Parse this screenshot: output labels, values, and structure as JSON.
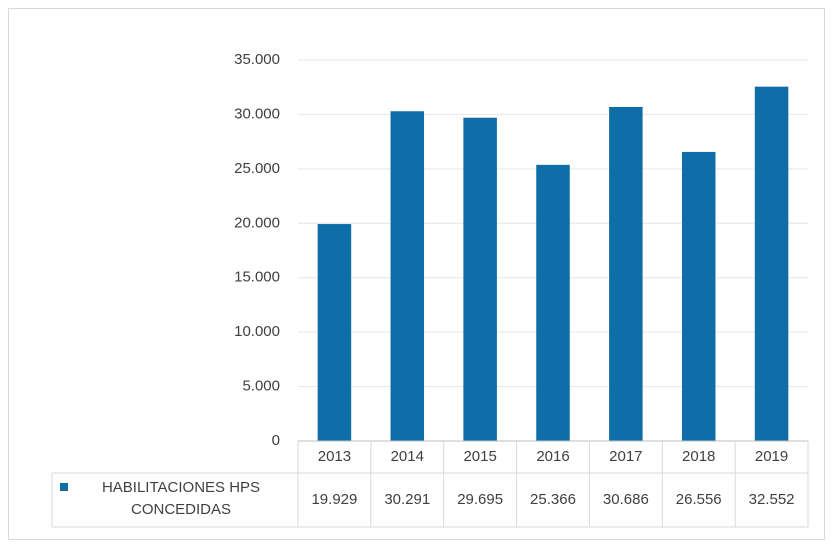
{
  "chart_data": {
    "type": "bar",
    "categories": [
      "2013",
      "2014",
      "2015",
      "2016",
      "2017",
      "2018",
      "2019"
    ],
    "series": [
      {
        "name": "HABILITACIONES HPS CONCEDIDAS",
        "color": "#0f6ea8",
        "values": [
          19929,
          30291,
          29695,
          25366,
          30686,
          26556,
          32552
        ],
        "value_labels": [
          "19.929",
          "30.291",
          "29.695",
          "25.366",
          "30.686",
          "26.556",
          "32.552"
        ]
      }
    ],
    "ylim": [
      0,
      35000
    ],
    "yticks": [
      0,
      {
        "value": 5000,
        "label": "5.000"
      },
      {
        "value": 10000,
        "label": "10.000"
      },
      {
        "value": 15000,
        "label": "15.000"
      },
      {
        "value": 20000,
        "label": "20.000"
      },
      {
        "value": 25000,
        "label": "25.000"
      },
      {
        "value": 30000,
        "label": "30.000"
      },
      {
        "value": 35000,
        "label": "35.000"
      }
    ],
    "grid": true,
    "data_table": true
  }
}
